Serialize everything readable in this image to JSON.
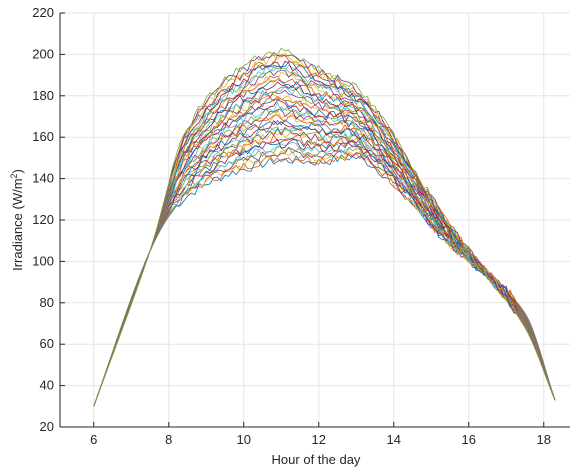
{
  "chart_data": {
    "type": "line",
    "title": "",
    "xlabel": "Hour of the day",
    "ylabel": "Irradiance (W/m",
    "ylabel_superscript": "2",
    "ylabel_close": ")",
    "xlim": [
      5.1,
      18.7
    ],
    "ylim": [
      20,
      220
    ],
    "x_ticks": [
      6,
      8,
      10,
      12,
      14,
      16,
      18
    ],
    "y_ticks": [
      20,
      40,
      60,
      80,
      100,
      120,
      140,
      160,
      180,
      200,
      220
    ],
    "grid": true,
    "legend": "none",
    "series_count": 40,
    "x_sample_hours": [
      6.0,
      7.5,
      10.7,
      13.3,
      17.5,
      18.3
    ],
    "y_at_6h": 30,
    "y_at_7_5h": 105,
    "peak_hour": 10.7,
    "peak_range": [
      148,
      201
    ],
    "y_at_13_3h_range": [
      148,
      178
    ],
    "y_at_17_5h_range": [
      68,
      75
    ],
    "y_at_18_3h": 33,
    "colors": [
      "#0072BD",
      "#D95319",
      "#EDB120",
      "#7E2F8E",
      "#77AC30",
      "#4DBEEE",
      "#A2142F"
    ]
  }
}
